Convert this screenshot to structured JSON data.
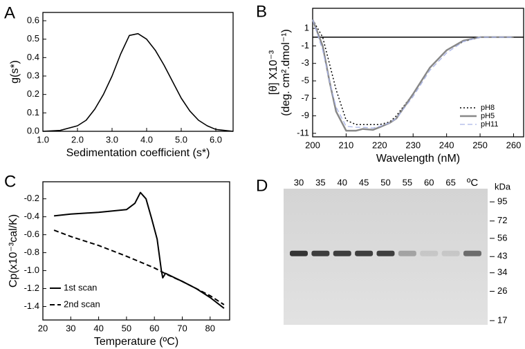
{
  "chart_data": [
    {
      "type": "line",
      "panel": "A",
      "xlabel": "Sedimentation coefficient (s*)",
      "ylabel": "g(s*)",
      "xlim": [
        1.0,
        6.5
      ],
      "ylim": [
        0,
        0.645
      ],
      "xticks": [
        {
          "value": 1,
          "label": "1.0"
        },
        {
          "value": 2,
          "label": "2.0"
        },
        {
          "value": 3,
          "label": "3.0"
        },
        {
          "value": 4,
          "label": "4.0"
        },
        {
          "value": 5,
          "label": "5.0"
        },
        {
          "value": 6,
          "label": "6.0"
        }
      ],
      "yticks": [
        {
          "value": 0,
          "label": "0.0"
        },
        0.1,
        0.2,
        0.3,
        0.4,
        0.5,
        0.6
      ],
      "series": [
        {
          "color": "#000000",
          "dash": "solid",
          "width": 1.6,
          "x": [
            1.0,
            1.5,
            2.0,
            2.25,
            2.5,
            2.75,
            3.0,
            3.25,
            3.5,
            3.75,
            4.0,
            4.25,
            4.5,
            4.75,
            5.0,
            5.25,
            5.5,
            5.75,
            6.0,
            6.25,
            6.5
          ],
          "values": [
            0.0,
            0.005,
            0.03,
            0.06,
            0.12,
            0.2,
            0.3,
            0.42,
            0.52,
            0.53,
            0.5,
            0.44,
            0.36,
            0.27,
            0.18,
            0.11,
            0.06,
            0.03,
            0.01,
            0.005,
            0.0
          ]
        }
      ]
    },
    {
      "type": "line",
      "panel": "B",
      "xlabel": "Wavelength (nM)",
      "ylabel": [
        "[θ] X10⁻³",
        "(deg. cm².dmol⁻¹)"
      ],
      "xlim": [
        200,
        263
      ],
      "ylim": [
        -11.4,
        3.3
      ],
      "zero_line": true,
      "legend": "lower right",
      "xticks": [
        200,
        210,
        220,
        230,
        240,
        250,
        260
      ],
      "yticks": [
        1,
        -1,
        -3,
        -5,
        -7,
        -9,
        -11
      ],
      "series": [
        {
          "name": "pH8",
          "color": "#000000",
          "dash": "dotted",
          "width": 1.5,
          "x": [
            200,
            203,
            205,
            207,
            210,
            213,
            215,
            218,
            220,
            223,
            225,
            230,
            235,
            240,
            245,
            250,
            255,
            260
          ],
          "values": [
            2,
            0,
            -3,
            -6,
            -9.5,
            -10,
            -10,
            -10,
            -10,
            -9.7,
            -9,
            -6.5,
            -3.5,
            -1.5,
            -0.5,
            0,
            0,
            0
          ]
        },
        {
          "name": "pH5",
          "color": "#888888",
          "dash": "solid",
          "width": 2.5,
          "x": [
            200,
            203,
            205,
            207,
            210,
            213,
            215,
            218,
            220,
            223,
            225,
            230,
            235,
            240,
            245,
            250,
            255,
            260
          ],
          "values": [
            2,
            -1,
            -5,
            -8.5,
            -10.7,
            -10.7,
            -10.5,
            -10.6,
            -10.3,
            -9.8,
            -9.3,
            -6.5,
            -3.5,
            -1.5,
            -0.4,
            0,
            0,
            0
          ]
        },
        {
          "name": "pH11",
          "color": "#a9b4e8",
          "dash": "dashed",
          "width": 1.3,
          "x": [
            200,
            203,
            205,
            207,
            210,
            213,
            215,
            218,
            220,
            223,
            225,
            230,
            235,
            240,
            245,
            250,
            255,
            260
          ],
          "values": [
            2,
            -1.5,
            -5,
            -8,
            -10.2,
            -10.3,
            -10.3,
            -10.4,
            -10.2,
            -9.8,
            -9.3,
            -6.8,
            -3.8,
            -1.8,
            -0.5,
            0,
            0,
            0
          ]
        }
      ]
    },
    {
      "type": "line",
      "panel": "C",
      "xlabel": "Temperature (ºC)",
      "ylabel": "Cp(x10⁻³cal/K)",
      "xlim": [
        20,
        87
      ],
      "ylim": [
        -1.55,
        -0.01
      ],
      "legend": "lower left",
      "xticks": [
        20,
        30,
        40,
        50,
        60,
        70,
        80
      ],
      "yticks": [
        -0.2,
        -0.4,
        -0.6,
        -0.8,
        {
          "value": -1,
          "label": "-1.0"
        },
        -1.2,
        -1.4
      ],
      "series": [
        {
          "name": "1st scan",
          "color": "#000000",
          "dash": "solid",
          "width": 2,
          "x": [
            24,
            30,
            40,
            50,
            53,
            55,
            57,
            59,
            61,
            62.5,
            63,
            64,
            70,
            75,
            80,
            85
          ],
          "values": [
            -0.39,
            -0.37,
            -0.35,
            -0.32,
            -0.25,
            -0.13,
            -0.2,
            -0.42,
            -0.65,
            -1.0,
            -1.08,
            -1.03,
            -1.12,
            -1.2,
            -1.3,
            -1.42
          ]
        },
        {
          "name": "2nd scan",
          "color": "#000000",
          "dash": "dashed",
          "width": 2,
          "x": [
            24,
            30,
            40,
            50,
            60,
            65,
            70,
            75,
            80,
            85
          ],
          "values": [
            -0.55,
            -0.62,
            -0.72,
            -0.84,
            -0.97,
            -1.05,
            -1.12,
            -1.2,
            -1.28,
            -1.38
          ]
        }
      ]
    },
    {
      "type": "gel",
      "panel": "D",
      "unit": "ºC",
      "marker_title": "kDa",
      "log": true,
      "categories": [
        "30",
        "35",
        "40",
        "45",
        "50",
        "55",
        "60",
        "65",
        null
      ],
      "values": [
        0.9,
        0.85,
        0.85,
        0.85,
        0.85,
        0.3,
        0.1,
        0.1,
        0.6
      ],
      "band_kda": 45,
      "ylim": [
        16,
        115
      ],
      "yticks": [
        95,
        72,
        56,
        43,
        34,
        26,
        17
      ]
    }
  ]
}
